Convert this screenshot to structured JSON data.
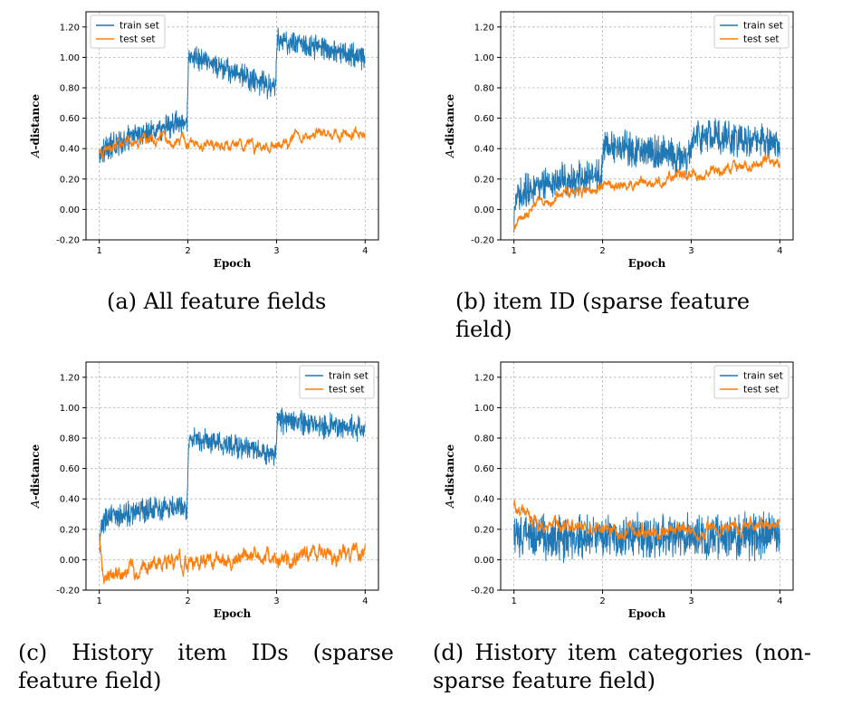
{
  "chart_data": [
    {
      "type": "line",
      "id": "a",
      "caption": "(a)  All feature fields",
      "xlabel": "Epoch",
      "ylabel": "A-distance",
      "ylabel_cal": "A",
      "ylabel_rest": "-distance",
      "xlim": [
        0.85,
        4.15
      ],
      "ylim": [
        -0.2,
        1.3
      ],
      "xticks": [
        "1",
        "2",
        "3",
        "4"
      ],
      "yticks": [
        "-0.20",
        "0.00",
        "0.20",
        "0.40",
        "0.60",
        "0.80",
        "1.00",
        "1.20"
      ],
      "legend_position": "top-left",
      "series": [
        {
          "name": "train set",
          "color": "#1f77b4",
          "x": [
            1.0,
            1.5,
            1.99,
            2.01,
            2.5,
            2.99,
            3.01,
            3.5,
            4.0
          ],
          "y": [
            0.38,
            0.51,
            0.58,
            1.01,
            0.9,
            0.8,
            1.12,
            1.06,
            1.0
          ],
          "noise": 0.05
        },
        {
          "name": "test set",
          "color": "#ff7f0e",
          "x": [
            1.0,
            1.3,
            1.6,
            2.0,
            2.3,
            2.6,
            2.9,
            3.2,
            3.6,
            4.0
          ],
          "y": [
            0.37,
            0.44,
            0.47,
            0.44,
            0.42,
            0.43,
            0.4,
            0.48,
            0.49,
            0.51
          ],
          "noise": 0.012
        }
      ]
    },
    {
      "type": "line",
      "id": "b",
      "caption": "(b)  item ID (sparse feature field)",
      "xlabel": "Epoch",
      "ylabel": "A-distance",
      "ylabel_cal": "A",
      "ylabel_rest": "-distance",
      "xlim": [
        0.85,
        4.15
      ],
      "ylim": [
        -0.2,
        1.3
      ],
      "xticks": [
        "1",
        "2",
        "3",
        "4"
      ],
      "yticks": [
        "-0.20",
        "0.00",
        "0.20",
        "0.40",
        "0.60",
        "0.80",
        "1.00",
        "1.20"
      ],
      "legend_position": "top-right",
      "series": [
        {
          "name": "train set",
          "color": "#1f77b4",
          "x": [
            1.0,
            1.05,
            1.3,
            1.6,
            1.99,
            2.01,
            2.5,
            2.99,
            3.01,
            3.5,
            4.0
          ],
          "y": [
            -0.05,
            0.1,
            0.17,
            0.2,
            0.22,
            0.42,
            0.39,
            0.33,
            0.49,
            0.47,
            0.42
          ],
          "noise": 0.07
        },
        {
          "name": "test set",
          "color": "#ff7f0e",
          "x": [
            1.0,
            1.05,
            1.3,
            1.6,
            2.0,
            2.3,
            2.6,
            3.0,
            3.3,
            3.7,
            4.0
          ],
          "y": [
            -0.12,
            -0.06,
            0.04,
            0.11,
            0.15,
            0.15,
            0.19,
            0.24,
            0.26,
            0.3,
            0.31
          ],
          "noise": 0.012
        }
      ]
    },
    {
      "type": "line",
      "id": "c",
      "caption": "(c)  History item IDs (sparse feature field)",
      "xlabel": "Epoch",
      "ylabel": "A-distance",
      "ylabel_cal": "A",
      "ylabel_rest": "-distance",
      "xlim": [
        0.85,
        4.15
      ],
      "ylim": [
        -0.2,
        1.3
      ],
      "xticks": [
        "1",
        "2",
        "3",
        "4"
      ],
      "yticks": [
        "-0.20",
        "0.00",
        "0.20",
        "0.40",
        "0.60",
        "0.80",
        "1.00",
        "1.20"
      ],
      "legend_position": "top-right",
      "series": [
        {
          "name": "train set",
          "color": "#1f77b4",
          "x": [
            1.0,
            1.03,
            1.3,
            1.6,
            1.99,
            2.01,
            2.5,
            2.99,
            3.01,
            3.5,
            4.0
          ],
          "y": [
            0.05,
            0.25,
            0.3,
            0.33,
            0.35,
            0.81,
            0.75,
            0.68,
            0.92,
            0.88,
            0.86
          ],
          "noise": 0.05
        },
        {
          "name": "test set",
          "color": "#ff7f0e",
          "x": [
            1.0,
            1.04,
            1.1,
            1.3,
            1.6,
            2.0,
            2.4,
            2.8,
            3.2,
            3.6,
            4.0
          ],
          "y": [
            0.18,
            -0.08,
            -0.12,
            -0.08,
            -0.04,
            -0.03,
            0.02,
            0.01,
            0.02,
            0.04,
            0.05
          ],
          "noise": 0.02
        }
      ]
    },
    {
      "type": "line",
      "id": "d",
      "caption": "(d)  History item categories (non-sparse feature field)",
      "xlabel": "Epoch",
      "ylabel": "A-distance",
      "ylabel_cal": "A",
      "ylabel_rest": "-distance",
      "xlim": [
        0.85,
        4.15
      ],
      "ylim": [
        -0.2,
        1.3
      ],
      "xticks": [
        "1",
        "2",
        "3",
        "4"
      ],
      "yticks": [
        "-0.20",
        "0.00",
        "0.20",
        "0.40",
        "0.60",
        "0.80",
        "1.00",
        "1.20"
      ],
      "legend_position": "top-right",
      "series": [
        {
          "name": "train set",
          "color": "#1f77b4",
          "x": [
            1.0,
            1.5,
            2.0,
            2.5,
            3.0,
            3.5,
            4.0
          ],
          "y": [
            0.16,
            0.15,
            0.16,
            0.15,
            0.16,
            0.15,
            0.16
          ],
          "noise": 0.09
        },
        {
          "name": "test set",
          "color": "#ff7f0e",
          "x": [
            1.0,
            1.1,
            1.3,
            1.6,
            2.0,
            2.4,
            2.8,
            3.2,
            3.6,
            4.0
          ],
          "y": [
            0.34,
            0.3,
            0.24,
            0.21,
            0.2,
            0.19,
            0.19,
            0.2,
            0.21,
            0.24
          ],
          "noise": 0.015
        }
      ]
    }
  ]
}
